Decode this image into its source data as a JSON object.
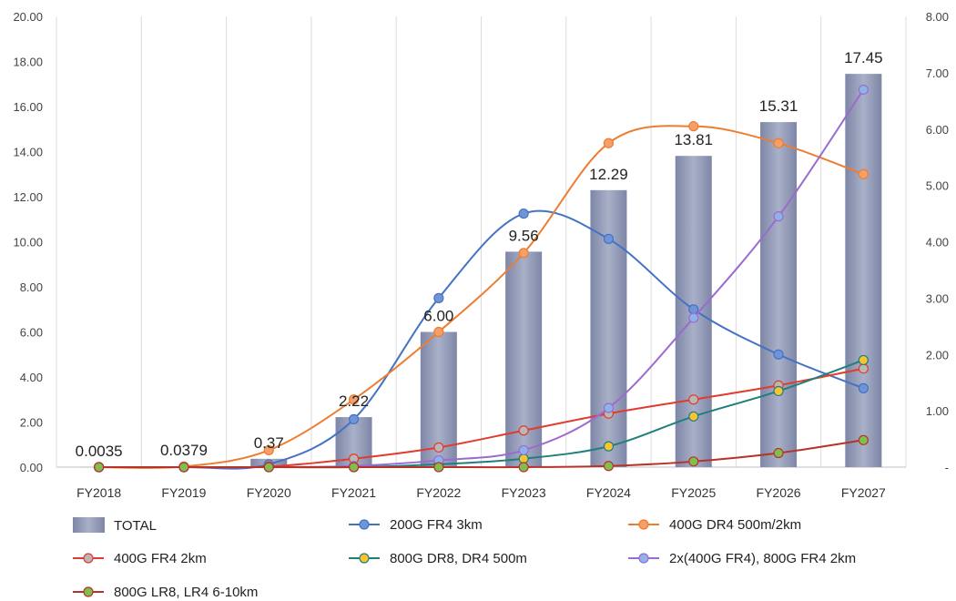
{
  "chart_data": {
    "type": "bar+line",
    "categories": [
      "FY2018",
      "FY2019",
      "FY2020",
      "FY2021",
      "FY2022",
      "FY2023",
      "FY2024",
      "FY2025",
      "FY2026",
      "FY2027"
    ],
    "bar_series": {
      "name": "TOTAL",
      "axis": "left",
      "color": "#9098b4",
      "values": [
        0.0035,
        0.0379,
        0.37,
        2.22,
        6.0,
        9.56,
        12.29,
        13.81,
        15.31,
        17.45
      ],
      "labels": [
        "0.0035",
        "0.0379",
        "0.37",
        "2.22",
        "6.00",
        "9.56",
        "12.29",
        "13.81",
        "15.31",
        "17.45"
      ]
    },
    "line_series": [
      {
        "name": "200G FR4 3km",
        "axis": "right",
        "color": "#4472c4",
        "marker": "#6f95d6",
        "values": [
          0,
          0,
          0.05,
          0.85,
          3.0,
          4.5,
          4.05,
          2.8,
          2.0,
          1.4
        ]
      },
      {
        "name": "400G DR4 500m/2km",
        "axis": "right",
        "color": "#ed7d31",
        "marker": "#f3a06a",
        "values": [
          0,
          0.01,
          0.3,
          1.2,
          2.4,
          3.8,
          5.75,
          6.05,
          5.75,
          5.2
        ]
      },
      {
        "name": "400G FR4 2km",
        "axis": "right",
        "color": "#e23b2e",
        "marker": "#b8b8b8",
        "values": [
          0,
          0,
          0.01,
          0.15,
          0.35,
          0.65,
          0.95,
          1.2,
          1.45,
          1.75
        ]
      },
      {
        "name": "800G DR8, DR4 500m",
        "axis": "right",
        "color": "#1f7f7a",
        "marker": "#f7c531",
        "values": [
          0,
          0,
          0,
          0,
          0.05,
          0.15,
          0.37,
          0.9,
          1.35,
          1.9
        ]
      },
      {
        "name": "2x(400G FR4), 800G FR4 2km",
        "axis": "right",
        "color": "#9b6bd0",
        "marker": "#8fb3e8",
        "values": [
          0,
          0,
          0,
          0.02,
          0.12,
          0.3,
          1.05,
          2.65,
          4.45,
          6.7
        ]
      },
      {
        "name": "800G LR8, LR4 6-10km",
        "axis": "right",
        "color": "#b8322a",
        "marker": "#7fbf4d",
        "values": [
          0,
          0,
          0,
          0,
          0,
          0,
          0.02,
          0.1,
          0.25,
          0.48
        ]
      }
    ],
    "left_axis": {
      "min": 0,
      "max": 20,
      "ticks": [
        "0.00",
        "2.00",
        "4.00",
        "6.00",
        "8.00",
        "10.00",
        "12.00",
        "14.00",
        "16.00",
        "18.00",
        "20.00"
      ]
    },
    "right_axis": {
      "min": 0,
      "max": 8,
      "ticks": [
        "-",
        "1.00",
        "2.00",
        "3.00",
        "4.00",
        "5.00",
        "6.00",
        "7.00",
        "8.00"
      ]
    },
    "grid": "vertical",
    "legend": "bottom"
  }
}
